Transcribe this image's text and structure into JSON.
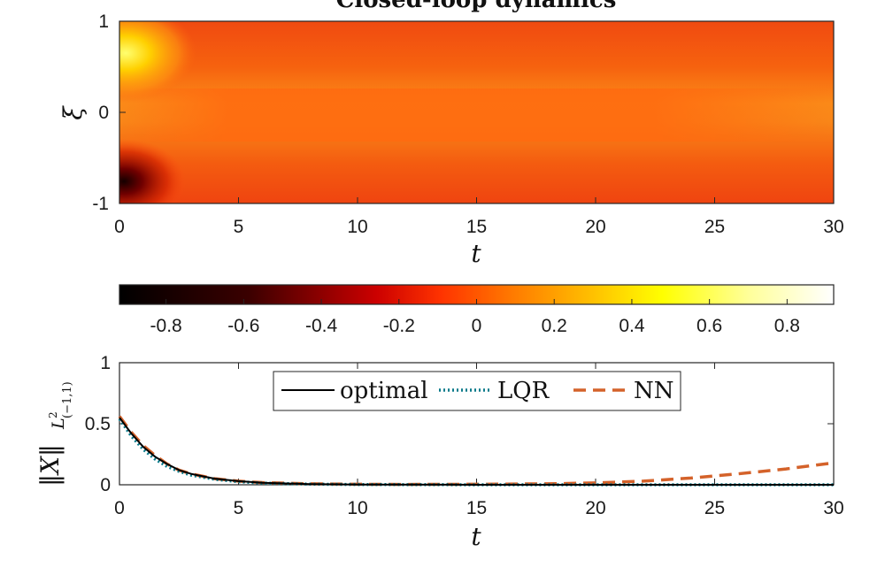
{
  "chart_data": [
    {
      "type": "heatmap",
      "title": "Closed-loop dynamics",
      "xlabel": "t",
      "ylabel": "ξ",
      "xlim": [
        0,
        30
      ],
      "ylim": [
        -1,
        1
      ],
      "x_ticks": [
        "0",
        "5",
        "10",
        "15",
        "20",
        "25",
        "30"
      ],
      "y_ticks": [
        "-1",
        "0",
        "1"
      ],
      "colormap": "hot",
      "colorbar": {
        "placement": "horizontal-below",
        "range": [
          -0.92,
          0.92
        ],
        "ticks": [
          "-0.8",
          "-0.6",
          "-0.4",
          "-0.2",
          "0",
          "0.2",
          "0.4",
          "0.6",
          "0.8"
        ]
      },
      "description_values": {
        "initial_top_peak_value": 0.5,
        "initial_bottom_trough_value": -0.8,
        "background_value": 0.0
      }
    },
    {
      "type": "line",
      "xlabel": "t",
      "ylabel": "‖X‖ L²(−1,1)",
      "xlim": [
        0,
        30
      ],
      "ylim": [
        0,
        1
      ],
      "x_ticks": [
        "0",
        "5",
        "10",
        "15",
        "20",
        "25",
        "30"
      ],
      "y_ticks": [
        "0",
        "0.5",
        "1"
      ],
      "legend_placement": "top-center",
      "series": [
        {
          "name": "optimal",
          "color": "#000000",
          "style": "solid",
          "x": [
            0,
            0.5,
            1,
            1.5,
            2,
            2.5,
            3,
            4,
            5,
            6,
            8,
            10,
            15,
            20,
            25,
            30
          ],
          "y": [
            0.55,
            0.42,
            0.31,
            0.23,
            0.17,
            0.12,
            0.09,
            0.05,
            0.03,
            0.017,
            0.006,
            0.002,
            0.0,
            0.0,
            0.0,
            0.0
          ]
        },
        {
          "name": "LQR",
          "color": "#0a7a8a",
          "style": "dotted",
          "x": [
            0,
            0.5,
            1,
            1.5,
            2,
            2.5,
            3,
            4,
            5,
            6,
            8,
            10,
            15,
            20,
            25,
            30
          ],
          "y": [
            0.54,
            0.4,
            0.29,
            0.21,
            0.15,
            0.11,
            0.08,
            0.045,
            0.025,
            0.014,
            0.005,
            0.002,
            0.0,
            0.0,
            0.0,
            0.0
          ]
        },
        {
          "name": "NN",
          "color": "#d4622a",
          "style": "dashed",
          "x": [
            0,
            0.5,
            1,
            1.5,
            2,
            2.5,
            3,
            4,
            5,
            6,
            8,
            10,
            12,
            15,
            18,
            20,
            22,
            24,
            26,
            28,
            30
          ],
          "y": [
            0.56,
            0.43,
            0.32,
            0.24,
            0.17,
            0.12,
            0.09,
            0.05,
            0.03,
            0.018,
            0.008,
            0.004,
            0.003,
            0.004,
            0.008,
            0.015,
            0.03,
            0.055,
            0.09,
            0.13,
            0.18
          ]
        }
      ]
    }
  ]
}
